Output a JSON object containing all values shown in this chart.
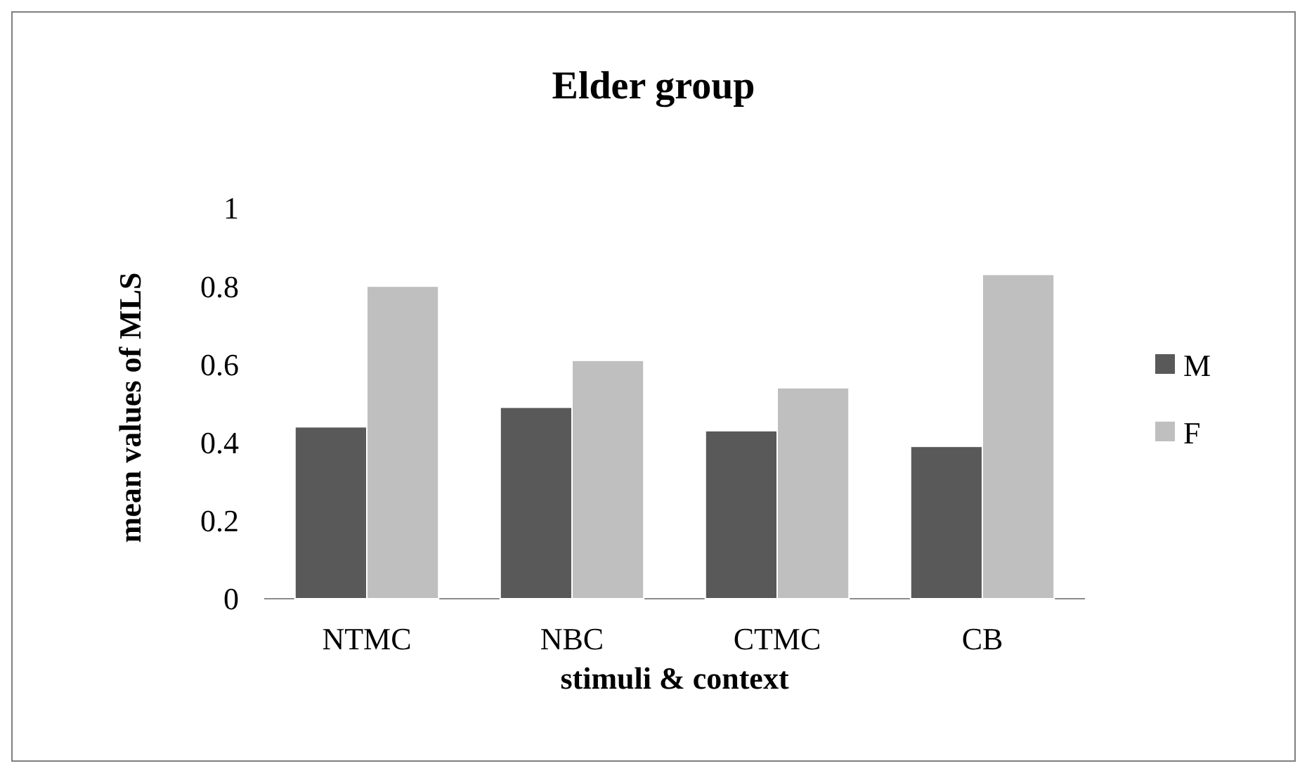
{
  "chart_data": {
    "type": "bar",
    "title": "Elder group",
    "xlabel": "stimuli & context",
    "ylabel": "mean values of MLS",
    "categories": [
      "NTMC",
      "NBC",
      "CTMC",
      "CB"
    ],
    "series": [
      {
        "name": "M",
        "color": "#595959",
        "values": [
          0.44,
          0.49,
          0.43,
          0.39
        ]
      },
      {
        "name": "F",
        "color": "#bfbfbf",
        "values": [
          0.8,
          0.61,
          0.54,
          0.83
        ]
      }
    ],
    "ylim": [
      0,
      1
    ],
    "yticks": [
      0,
      {
        "value": 0.2,
        "label": "0.2"
      },
      {
        "value": 0.4,
        "label": "0.4"
      },
      {
        "value": 0.6,
        "label": "0.6"
      },
      {
        "value": 0.8,
        "label": "0.8"
      },
      1
    ],
    "grid": false,
    "legend": "right"
  }
}
